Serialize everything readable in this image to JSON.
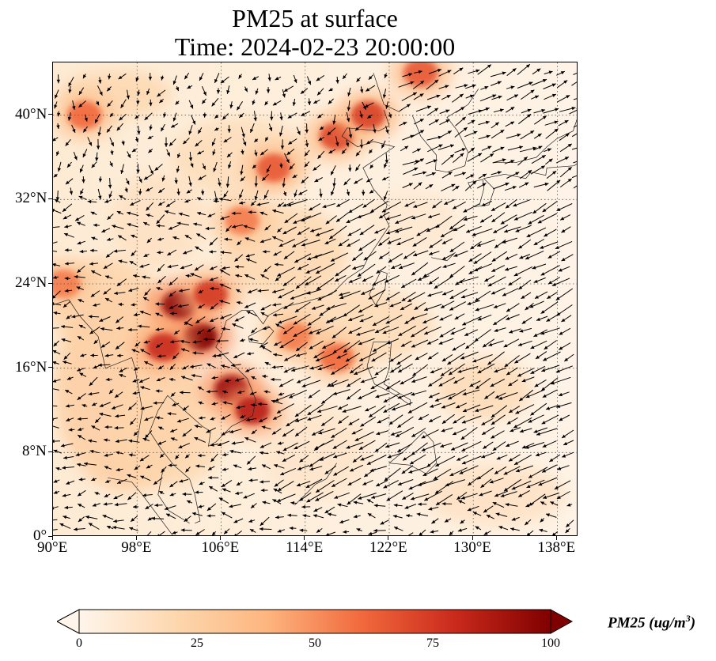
{
  "title": {
    "line1": "PM25 at surface",
    "line2": "Time: 2024-02-23 20:00:00"
  },
  "map": {
    "projection": "PlateCarree",
    "lon_range": [
      90,
      140
    ],
    "lat_range": [
      0,
      45
    ],
    "lon_ticks": [
      {
        "value": 90,
        "label": "90°E"
      },
      {
        "value": 98,
        "label": "98°E"
      },
      {
        "value": 106,
        "label": "106°E"
      },
      {
        "value": 114,
        "label": "114°E"
      },
      {
        "value": 122,
        "label": "122°E"
      },
      {
        "value": 130,
        "label": "130°E"
      },
      {
        "value": 138,
        "label": "138°E"
      }
    ],
    "lat_ticks": [
      {
        "value": 0,
        "label": "0°"
      },
      {
        "value": 8,
        "label": "8°N"
      },
      {
        "value": 16,
        "label": "16°N"
      },
      {
        "value": 24,
        "label": "24°N"
      },
      {
        "value": 32,
        "label": "32°N"
      },
      {
        "value": 40,
        "label": "40°N"
      }
    ],
    "gridlines": true,
    "gridline_style": "dotted",
    "wind_vectors": true,
    "colormap": "OrRd",
    "pollution_hotspots": [
      {
        "lon": 104,
        "lat": 19,
        "pm25": 100
      },
      {
        "lon": 102,
        "lat": 22,
        "pm25": 95
      },
      {
        "lon": 107,
        "lat": 14,
        "pm25": 92
      },
      {
        "lon": 109,
        "lat": 12,
        "pm25": 85
      },
      {
        "lon": 100.5,
        "lat": 18,
        "pm25": 80
      },
      {
        "lon": 105,
        "lat": 23,
        "pm25": 75
      },
      {
        "lon": 117,
        "lat": 38,
        "pm25": 70
      },
      {
        "lon": 111,
        "lat": 35,
        "pm25": 65
      },
      {
        "lon": 120,
        "lat": 40,
        "pm25": 72
      },
      {
        "lon": 93,
        "lat": 40,
        "pm25": 60
      },
      {
        "lon": 108,
        "lat": 30,
        "pm25": 55
      },
      {
        "lon": 113,
        "lat": 19,
        "pm25": 55
      },
      {
        "lon": 117,
        "lat": 17,
        "pm25": 60
      },
      {
        "lon": 125,
        "lat": 44,
        "pm25": 65
      },
      {
        "lon": 91,
        "lat": 24,
        "pm25": 55
      }
    ]
  },
  "colorbar": {
    "label": "PM25 (ug/m",
    "label_exp": "3",
    "label_close": ")",
    "min": 0,
    "max": 100,
    "extend": "both",
    "ticks": [
      {
        "value": 0,
        "label": "0"
      },
      {
        "value": 25,
        "label": "25"
      },
      {
        "value": 50,
        "label": "50"
      },
      {
        "value": 75,
        "label": "75"
      },
      {
        "value": 100,
        "label": "100"
      }
    ],
    "colors": [
      "#fff5eb",
      "#fdd8b0",
      "#fdb57e",
      "#f1693c",
      "#c9291b",
      "#7f0000"
    ]
  }
}
